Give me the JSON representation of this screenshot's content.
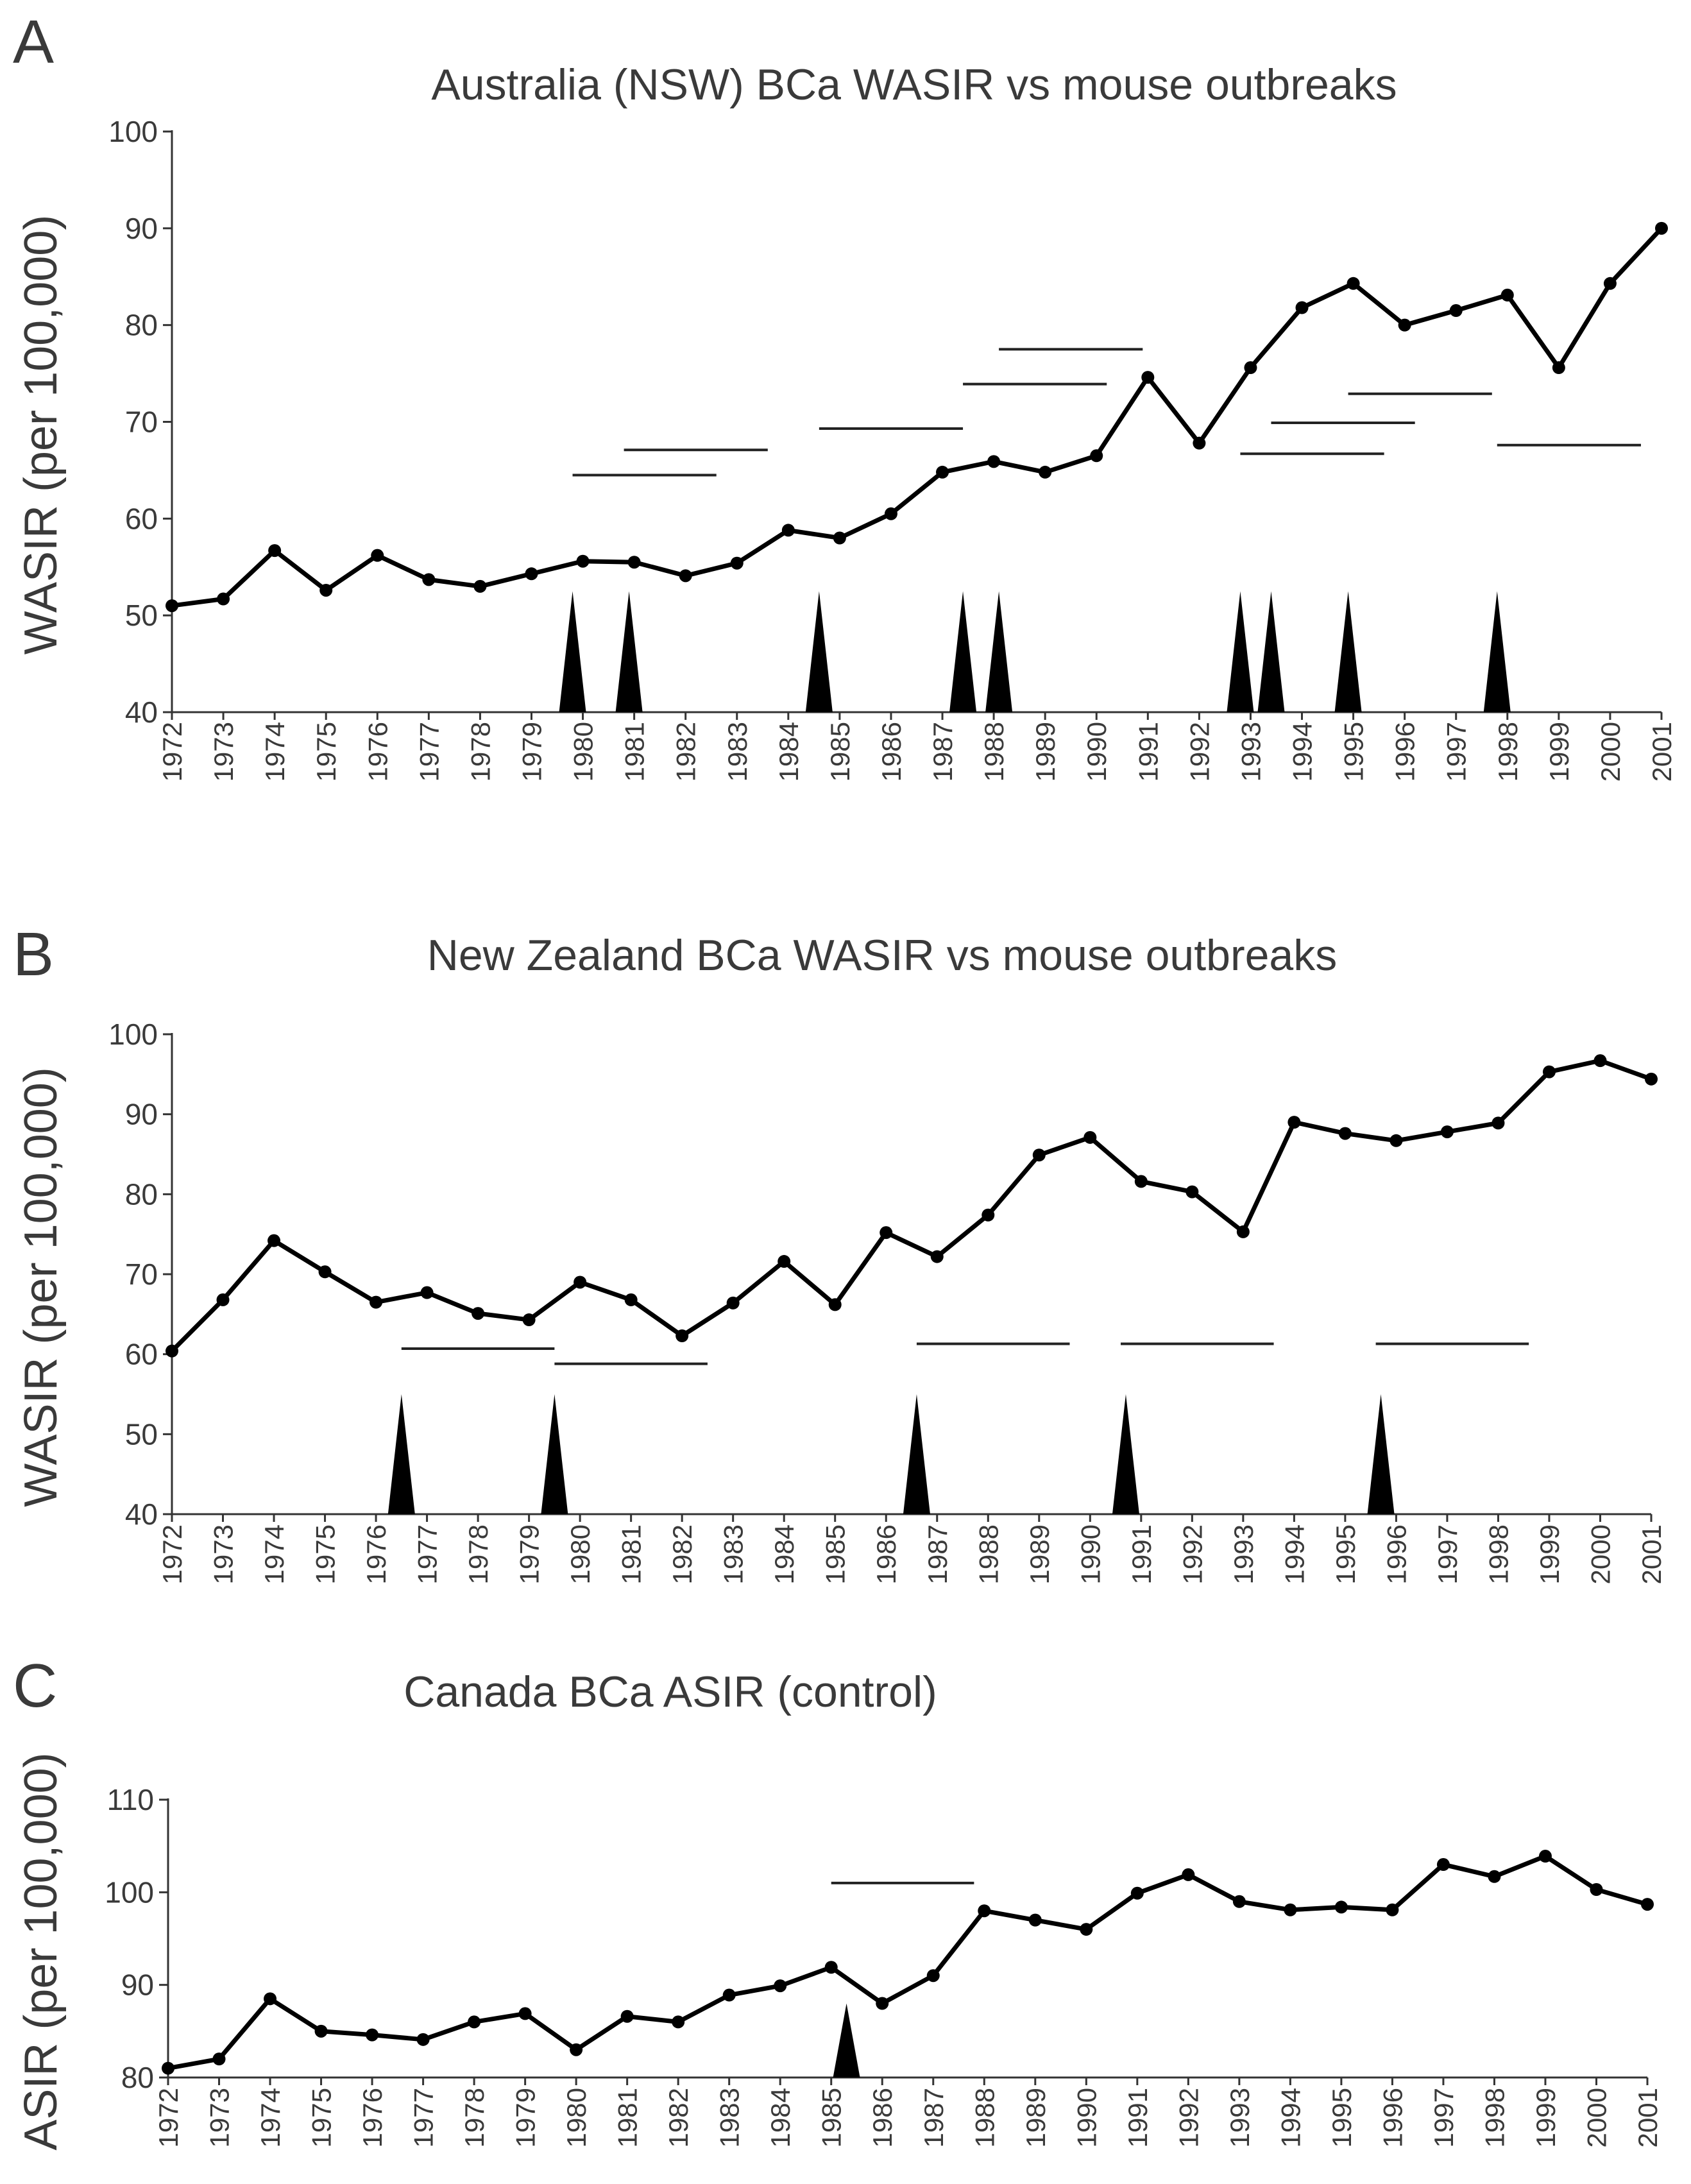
{
  "chart_data": [
    {
      "panel": "A",
      "type": "line",
      "title": "Australia (NSW) BCa WASIR vs mouse outbreaks",
      "ylabel": "WASIR (per 100,000)",
      "xlabel": "",
      "ylim": [
        40,
        100
      ],
      "yticks": [
        40,
        50,
        60,
        70,
        80,
        90,
        100
      ],
      "x": [
        1972,
        1973,
        1974,
        1975,
        1976,
        1977,
        1978,
        1979,
        1980,
        1981,
        1982,
        1983,
        1984,
        1985,
        1986,
        1987,
        1988,
        1989,
        1990,
        1991,
        1992,
        1993,
        1994,
        1995,
        1996,
        1997,
        1998,
        1999,
        2000,
        2001
      ],
      "values": [
        51,
        51.7,
        56.7,
        52.6,
        56.2,
        53.7,
        53,
        54.3,
        55.6,
        55.5,
        54.1,
        55.4,
        58.8,
        58,
        60.5,
        64.8,
        65.9,
        64.8,
        66.5,
        74.6,
        67.8,
        75.6,
        81.8,
        84.3,
        80,
        81.5,
        83.1,
        75.6,
        84.3,
        90
      ],
      "outbreaks": [
        1979.8,
        1980.9,
        1984.6,
        1987.4,
        1988.1,
        1992.8,
        1993.4,
        1994.9,
        1997.8
      ],
      "outbreak_height": 52.5,
      "bars": [
        {
          "start": 1979.8,
          "end": 1982.6,
          "y": 64.5
        },
        {
          "start": 1980.8,
          "end": 1983.6,
          "y": 67.1
        },
        {
          "start": 1984.6,
          "end": 1987.4,
          "y": 69.3
        },
        {
          "start": 1987.4,
          "end": 1990.2,
          "y": 73.9
        },
        {
          "start": 1988.1,
          "end": 1990.9,
          "y": 77.5
        },
        {
          "start": 1992.8,
          "end": 1995.6,
          "y": 66.7
        },
        {
          "start": 1993.4,
          "end": 1996.2,
          "y": 69.9
        },
        {
          "start": 1994.9,
          "end": 1997.7,
          "y": 72.9
        },
        {
          "start": 1997.8,
          "end": 2000.6,
          "y": 67.6
        }
      ]
    },
    {
      "panel": "B",
      "type": "line",
      "title": "New Zealand BCa WASIR vs mouse outbreaks",
      "ylabel": "WASIR (per 100,000)",
      "xlabel": "",
      "ylim": [
        40,
        100
      ],
      "yticks": [
        40,
        50,
        60,
        70,
        80,
        90,
        100
      ],
      "x": [
        1972,
        1973,
        1974,
        1975,
        1976,
        1977,
        1978,
        1979,
        1980,
        1981,
        1982,
        1983,
        1984,
        1985,
        1986,
        1987,
        1988,
        1989,
        1990,
        1991,
        1992,
        1993,
        1994,
        1995,
        1996,
        1997,
        1998,
        1999,
        2000,
        2001
      ],
      "values": [
        60.4,
        66.8,
        74.2,
        70.3,
        66.5,
        67.7,
        65.1,
        64.3,
        69,
        66.8,
        62.3,
        66.4,
        71.6,
        66.2,
        75.2,
        72.2,
        77.4,
        84.9,
        87.1,
        81.6,
        80.3,
        75.3,
        89,
        87.6,
        86.7,
        87.8,
        88.9,
        95.3,
        96.7,
        94.4
      ],
      "outbreaks": [
        1976.5,
        1979.5,
        1986.6,
        1990.7,
        1995.7
      ],
      "outbreak_height": 55,
      "bars": [
        {
          "start": 1976.5,
          "end": 1979.5,
          "y": 60.7
        },
        {
          "start": 1979.5,
          "end": 1982.5,
          "y": 58.8
        },
        {
          "start": 1986.6,
          "end": 1989.6,
          "y": 61.3
        },
        {
          "start": 1990.6,
          "end": 1993.6,
          "y": 61.3
        },
        {
          "start": 1995.6,
          "end": 1998.6,
          "y": 61.3
        }
      ]
    },
    {
      "panel": "C",
      "type": "line",
      "title": "Canada BCa ASIR (control)",
      "ylabel": "ASIR (per 100,000)",
      "xlabel": "",
      "ylim": [
        80,
        110
      ],
      "yticks": [
        80,
        90,
        100,
        110
      ],
      "x": [
        1972,
        1973,
        1974,
        1975,
        1976,
        1977,
        1978,
        1979,
        1980,
        1981,
        1982,
        1983,
        1984,
        1985,
        1986,
        1987,
        1988,
        1989,
        1990,
        1991,
        1992,
        1993,
        1994,
        1995,
        1996,
        1997,
        1998,
        1999,
        2000,
        2001
      ],
      "values": [
        81,
        82,
        88.5,
        85,
        84.6,
        84.1,
        86,
        86.9,
        83,
        86.6,
        86,
        88.9,
        89.9,
        91.9,
        88,
        91,
        98,
        97,
        96,
        99.9,
        101.9,
        99,
        98.1,
        98.4,
        98.1,
        103,
        101.7,
        103.9,
        100.3,
        98.7
      ],
      "outbreaks": [
        1985.3
      ],
      "outbreak_height": 88,
      "bars": [
        {
          "start": 1985,
          "end": 1987.8,
          "y": 101
        }
      ]
    }
  ]
}
